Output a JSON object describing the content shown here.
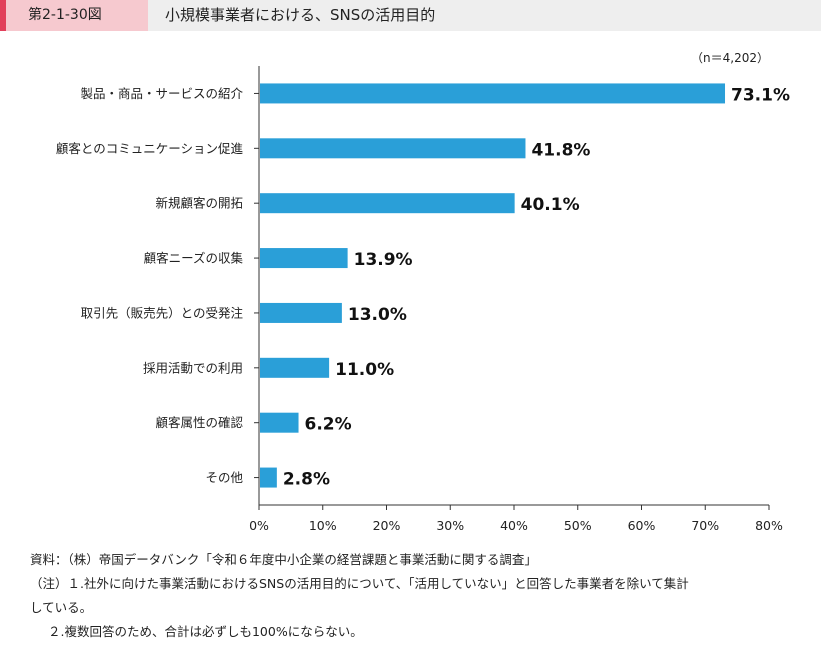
{
  "header": {
    "figure_number": "第2-1-30図",
    "title": "小規模事業者における、SNSの活用目的"
  },
  "chart_data": {
    "type": "bar",
    "orientation": "horizontal",
    "sample_note": "（n＝4,202）",
    "categories": [
      "製品・商品・サービスの紹介",
      "顧客とのコミュニケーション促進",
      "新規顧客の開拓",
      "顧客ニーズの収集",
      "取引先（販売先）との受発注",
      "採用活動での利用",
      "顧客属性の確認",
      "その他"
    ],
    "values": [
      73.1,
      41.8,
      40.1,
      13.9,
      13.0,
      11.0,
      6.2,
      2.8
    ],
    "value_labels": [
      "73.1%",
      "41.8%",
      "40.1%",
      "13.9%",
      "13.0%",
      "11.0%",
      "6.2%",
      "2.8%"
    ],
    "xlim": [
      0,
      80
    ],
    "x_ticks": [
      "0%",
      "10%",
      "20%",
      "30%",
      "40%",
      "50%",
      "60%",
      "70%",
      "80%"
    ],
    "bar_color": "#2a9fd8",
    "grid": false
  },
  "notes": {
    "source": "資料：（株）帝国データバンク「令和６年度中小企業の経営課題と事業活動に関する調査」",
    "note1_a": "（注）１.社外に向けた事業活動におけるSNSの活用目的について、「活用していない」と回答した事業者を除いて集計",
    "note1_b": "している。",
    "note2": "２.複数回答のため、合計は必ずしも100%にならない。"
  }
}
